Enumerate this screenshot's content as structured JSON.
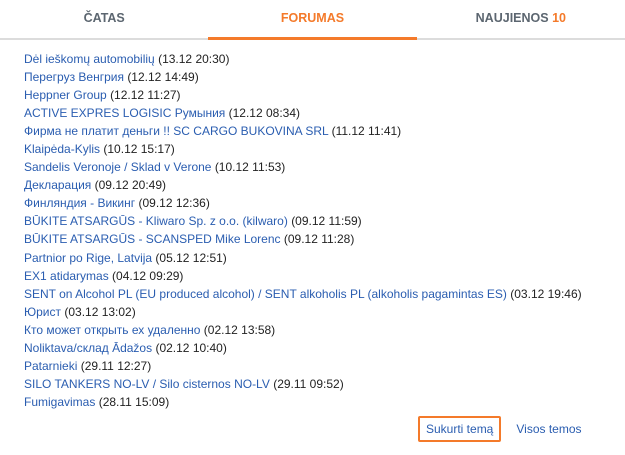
{
  "tabs": [
    {
      "label": "ČATAS"
    },
    {
      "label": "FORUMAS",
      "active": true
    },
    {
      "label": "NAUJIENOS",
      "count": "10"
    }
  ],
  "topics": [
    {
      "title": "Dėl ieškomų automobilių",
      "date": "(13.12 20:30)"
    },
    {
      "title": "Перегруз Венгрия",
      "date": "(12.12 14:49)"
    },
    {
      "title": "Heppner Group",
      "date": "(12.12 11:27)"
    },
    {
      "title": "ACTIVE EXPRES LOGISIC Румыния",
      "date": "(12.12 08:34)"
    },
    {
      "title": "Фирма не платит деньги !! SC CARGO BUKOVINA SRL",
      "date": "(11.12 11:41)"
    },
    {
      "title": "Klaipėda-Kylis",
      "date": "(10.12 15:17)"
    },
    {
      "title": "Sandelis Veronoje / Sklad v Verone",
      "date": "(10.12 11:53)"
    },
    {
      "title": "Декларация",
      "date": "(09.12 20:49)"
    },
    {
      "title": "Финляндия - Викинг",
      "date": "(09.12 12:36)"
    },
    {
      "title": "BŪKITE ATSARGŪS - Kliwaro Sp. z o.o. (kilwaro)",
      "date": "(09.12 11:59)"
    },
    {
      "title": "BŪKITE ATSARGŪS - SCANSPED Mike Lorenc",
      "date": "(09.12 11:28)"
    },
    {
      "title": "Partnior po Rige, Latvija",
      "date": "(05.12 12:51)"
    },
    {
      "title": "EX1 atidarymas",
      "date": "(04.12 09:29)"
    },
    {
      "title": "SENT on Alcohol PL (EU produced alcohol) / SENT alkoholis PL (alkoholis pagamintas ES)",
      "date": "(03.12 19:46)"
    },
    {
      "title": "Юрист",
      "date": "(03.12 13:02)"
    },
    {
      "title": "Кто может открыть ех удаленно",
      "date": "(02.12 13:58)"
    },
    {
      "title": "Noliktava/склад Ādažos",
      "date": "(02.12 10:40)"
    },
    {
      "title": "Patarnieki",
      "date": "(29.11 12:27)"
    },
    {
      "title": "SILO TANKERS NO-LV / Silo cisternos NO-LV",
      "date": "(29.11 09:52)"
    },
    {
      "title": "Fumigavimas",
      "date": "(28.11 15:09)"
    }
  ],
  "footer": {
    "create_label": "Sukurti temą",
    "all_label": "Visos temos"
  },
  "colors": {
    "accent": "#f47a2a",
    "link": "#2a5db0"
  }
}
